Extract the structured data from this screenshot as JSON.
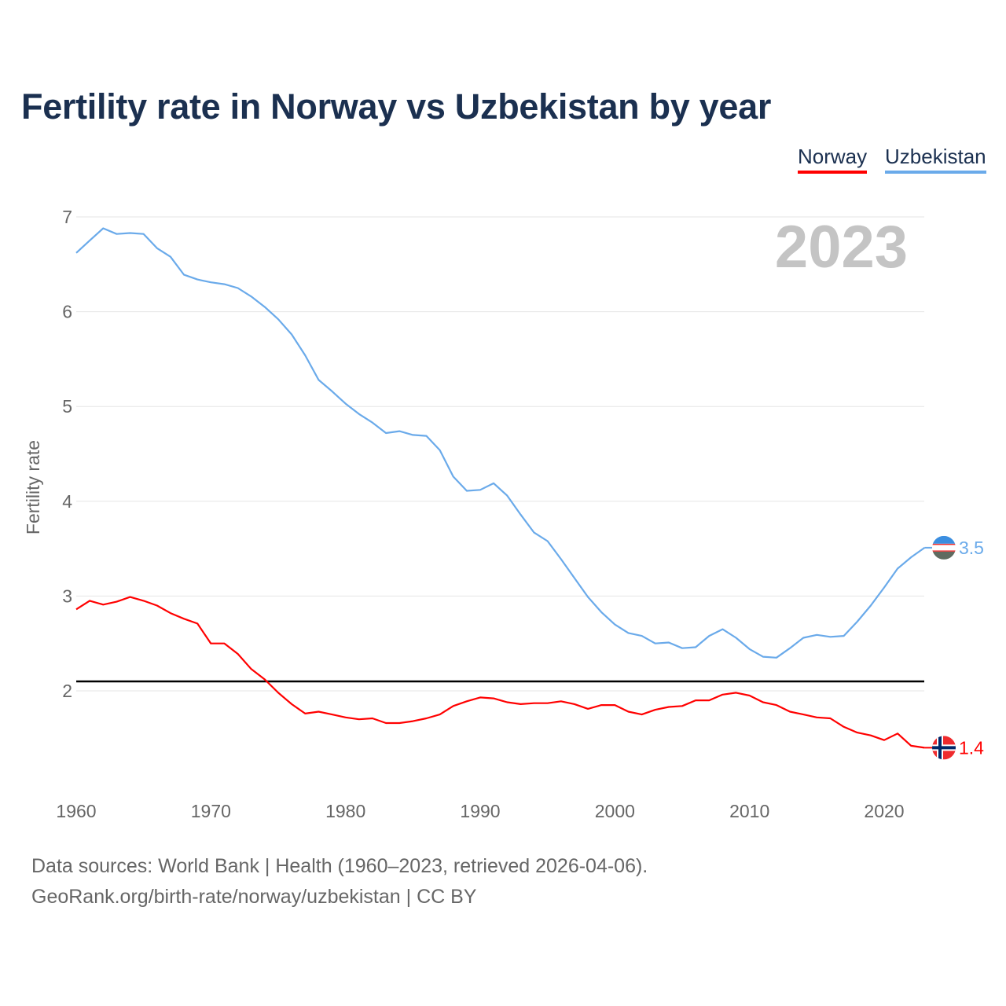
{
  "title": "Fertility rate in Norway vs Uzbekistan by year",
  "sources": {
    "line1": "Data sources: World Bank | Health (1960–2023, retrieved 2026-04-06).",
    "line2": "GeoRank.org/birth-rate/norway/uzbekistan | CC BY"
  },
  "chart_data": {
    "type": "line",
    "title": "Fertility rate in Norway vs Uzbekistan by year",
    "ylabel": "Fertility rate",
    "xlabel": "",
    "year_label": "2023",
    "xlim": [
      1960,
      2023
    ],
    "ylim": [
      1.05,
      7
    ],
    "xticks": [
      1960,
      1970,
      1980,
      1990,
      2000,
      2010,
      2020
    ],
    "yticks": [
      2,
      3,
      4,
      5,
      6,
      7
    ],
    "grid": true,
    "legend_position": "top-right",
    "reference_line": 2.1,
    "x_start": 1960,
    "series": [
      {
        "name": "Norway",
        "color": "#ff0000",
        "flag": "norway-flag",
        "end_label": "1.4",
        "values": [
          2.86,
          2.95,
          2.91,
          2.94,
          2.99,
          2.95,
          2.9,
          2.82,
          2.76,
          2.71,
          2.5,
          2.5,
          2.39,
          2.23,
          2.12,
          1.98,
          1.86,
          1.76,
          1.78,
          1.75,
          1.72,
          1.7,
          1.71,
          1.66,
          1.66,
          1.68,
          1.71,
          1.75,
          1.84,
          1.89,
          1.93,
          1.92,
          1.88,
          1.86,
          1.87,
          1.87,
          1.89,
          1.86,
          1.81,
          1.85,
          1.85,
          1.78,
          1.75,
          1.8,
          1.83,
          1.84,
          1.9,
          1.9,
          1.96,
          1.98,
          1.95,
          1.88,
          1.85,
          1.78,
          1.75,
          1.72,
          1.71,
          1.62,
          1.56,
          1.53,
          1.48,
          1.55,
          1.42,
          1.4
        ]
      },
      {
        "name": "Uzbekistan",
        "color": "#6aaaea",
        "flag": "uzbekistan-flag",
        "end_label": "3.5",
        "values": [
          6.62,
          6.75,
          6.88,
          6.82,
          6.83,
          6.82,
          6.67,
          6.58,
          6.39,
          6.34,
          6.31,
          6.29,
          6.25,
          6.16,
          6.05,
          5.92,
          5.76,
          5.54,
          5.28,
          5.16,
          5.03,
          4.92,
          4.83,
          4.72,
          4.74,
          4.7,
          4.69,
          4.54,
          4.26,
          4.11,
          4.12,
          4.19,
          4.06,
          3.86,
          3.67,
          3.58,
          3.39,
          3.19,
          2.99,
          2.83,
          2.7,
          2.61,
          2.58,
          2.5,
          2.51,
          2.45,
          2.46,
          2.58,
          2.65,
          2.56,
          2.44,
          2.36,
          2.35,
          2.45,
          2.56,
          2.59,
          2.57,
          2.58,
          2.73,
          2.9,
          3.09,
          3.29,
          3.41,
          3.51
        ]
      }
    ]
  }
}
